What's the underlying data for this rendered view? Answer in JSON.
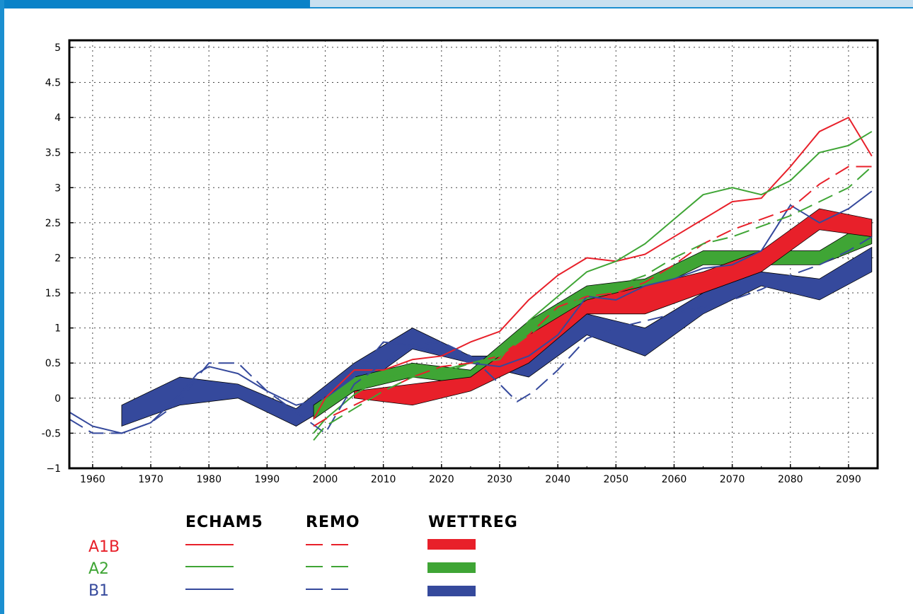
{
  "colors": {
    "A1B": "#e8202a",
    "A2": "#3fa535",
    "B1": "#35499c",
    "frame": "#1b8fd0"
  },
  "chart_data": {
    "type": "line",
    "xlim": [
      1956,
      2095
    ],
    "ylim": [
      -1,
      5.1
    ],
    "x_ticks": [
      1960,
      1970,
      1980,
      1990,
      2000,
      2010,
      2020,
      2030,
      2040,
      2050,
      2060,
      2070,
      2080,
      2090
    ],
    "y_ticks": [
      {
        "v": 5,
        "label": "5"
      },
      {
        "v": 4.5,
        "label": "4.5"
      },
      {
        "v": 4,
        "label": "4"
      },
      {
        "v": 3.5,
        "label": "3.5"
      },
      {
        "v": 3,
        "label": "3"
      },
      {
        "v": 2.5,
        "label": "2.5"
      },
      {
        "v": 2,
        "label": "2"
      },
      {
        "v": 1.5,
        "label": "1.5"
      },
      {
        "v": 1,
        "label": "1"
      },
      {
        "v": 0.5,
        "label": "0.5"
      },
      {
        "v": 0,
        "label": "0"
      },
      {
        "v": -0.5,
        "label": "-0.5"
      },
      {
        "v": -1,
        "label": "−1"
      }
    ],
    "grid": true,
    "legend": {
      "columns": [
        "ECHAM5",
        "REMO",
        "WETTREG"
      ],
      "rows": [
        {
          "label": "A1B",
          "color": "#e8202a"
        },
        {
          "label": "A2",
          "color": "#3fa535"
        },
        {
          "label": "B1",
          "color": "#35499c"
        }
      ]
    },
    "bands": [
      {
        "scenario": "B1",
        "color": "#35499c",
        "x": [
          1965,
          1975,
          1985,
          1995,
          2005,
          2015,
          2025,
          2035,
          2045,
          2055,
          2065,
          2075,
          2085,
          2094
        ],
        "low": [
          -0.4,
          -0.1,
          0.0,
          -0.4,
          0.1,
          0.7,
          0.5,
          0.3,
          0.9,
          0.6,
          1.2,
          1.6,
          1.4,
          1.8
        ],
        "high": [
          -0.1,
          0.3,
          0.2,
          -0.15,
          0.5,
          1.0,
          0.6,
          0.6,
          1.2,
          1.0,
          1.5,
          1.8,
          1.7,
          2.15
        ]
      },
      {
        "scenario": "A2",
        "color": "#3fa535",
        "x": [
          1998,
          2005,
          2015,
          2025,
          2035,
          2045,
          2055,
          2065,
          2075,
          2085,
          2094
        ],
        "low": [
          -0.3,
          0.1,
          0.3,
          0.2,
          0.8,
          1.3,
          1.5,
          1.9,
          1.9,
          1.9,
          2.2
        ],
        "high": [
          -0.1,
          0.3,
          0.5,
          0.4,
          1.1,
          1.6,
          1.7,
          2.1,
          2.1,
          2.1,
          2.55
        ]
      },
      {
        "scenario": "A1B",
        "color": "#e8202a",
        "x": [
          2005,
          2015,
          2025,
          2035,
          2045,
          2055,
          2065,
          2075,
          2085,
          2094
        ],
        "low": [
          0.0,
          -0.1,
          0.1,
          0.5,
          1.2,
          1.2,
          1.5,
          1.8,
          2.4,
          2.3
        ],
        "high": [
          0.1,
          0.2,
          0.3,
          0.9,
          1.4,
          1.6,
          1.8,
          2.1,
          2.7,
          2.55
        ]
      }
    ],
    "series": [
      {
        "scenario": "B1",
        "model": "ECHAM5",
        "color": "#35499c",
        "dashed": false,
        "x": [
          1956,
          1960,
          1965,
          1970,
          1975,
          1978,
          1980,
          1985,
          1990,
          1995,
          2000,
          2005,
          2010,
          2015,
          2020,
          2025,
          2030,
          2035,
          2040,
          2045,
          2050,
          2055,
          2060,
          2065,
          2070,
          2075,
          2080,
          2085,
          2090,
          2094
        ],
        "y": [
          -0.2,
          -0.4,
          -0.5,
          -0.35,
          0.05,
          0.35,
          0.45,
          0.35,
          0.1,
          -0.1,
          0.0,
          0.3,
          0.8,
          0.75,
          0.65,
          0.5,
          0.45,
          0.6,
          0.9,
          1.45,
          1.4,
          1.6,
          1.7,
          1.85,
          1.9,
          2.1,
          2.75,
          2.5,
          2.7,
          2.95
        ]
      },
      {
        "scenario": "A1B",
        "model": "ECHAM5",
        "color": "#e8202a",
        "dashed": false,
        "x": [
          1998,
          2000,
          2005,
          2010,
          2015,
          2020,
          2025,
          2030,
          2035,
          2040,
          2045,
          2050,
          2055,
          2060,
          2065,
          2070,
          2075,
          2080,
          2085,
          2090,
          2094
        ],
        "y": [
          -0.3,
          0.0,
          0.4,
          0.4,
          0.55,
          0.6,
          0.8,
          0.95,
          1.4,
          1.75,
          2.0,
          1.95,
          2.05,
          2.3,
          2.55,
          2.8,
          2.85,
          3.3,
          3.8,
          4.0,
          3.45
        ]
      },
      {
        "scenario": "A2",
        "model": "ECHAM5",
        "color": "#3fa535",
        "dashed": false,
        "x": [
          1998,
          2000,
          2005,
          2010,
          2015,
          2020,
          2025,
          2030,
          2035,
          2040,
          2045,
          2050,
          2055,
          2060,
          2065,
          2070,
          2075,
          2080,
          2085,
          2090,
          2094
        ],
        "y": [
          -0.5,
          -0.3,
          0.05,
          0.3,
          0.35,
          0.4,
          0.5,
          0.55,
          1.1,
          1.45,
          1.8,
          1.95,
          2.2,
          2.55,
          2.9,
          3.0,
          2.9,
          3.1,
          3.5,
          3.6,
          3.8
        ]
      },
      {
        "scenario": "B1",
        "model": "REMO",
        "color": "#35499c",
        "dashed": true,
        "x": [
          1956,
          1960,
          1965,
          1970,
          1975,
          1978,
          1980,
          1985,
          1990,
          1995,
          2000,
          2005,
          2010,
          2015,
          2020,
          2025,
          2030,
          2033,
          2036,
          2040,
          2045,
          2050,
          2055,
          2060,
          2065,
          2070,
          2075,
          2080,
          2085,
          2090,
          2094
        ],
        "y": [
          -0.3,
          -0.5,
          -0.5,
          -0.35,
          -0.05,
          0.3,
          0.5,
          0.5,
          0.1,
          -0.2,
          -0.5,
          0.2,
          0.5,
          0.75,
          0.8,
          0.6,
          0.2,
          -0.05,
          0.1,
          0.4,
          0.85,
          1.0,
          1.1,
          1.2,
          1.3,
          1.4,
          1.55,
          1.75,
          1.9,
          2.1,
          2.3
        ]
      },
      {
        "scenario": "A1B",
        "model": "REMO",
        "color": "#e8202a",
        "dashed": true,
        "x": [
          1998,
          2000,
          2005,
          2010,
          2015,
          2020,
          2025,
          2030,
          2035,
          2040,
          2045,
          2050,
          2055,
          2060,
          2065,
          2070,
          2075,
          2080,
          2085,
          2090,
          2094
        ],
        "y": [
          -0.4,
          -0.3,
          -0.1,
          0.1,
          0.3,
          0.45,
          0.5,
          0.6,
          0.9,
          1.3,
          1.45,
          1.5,
          1.65,
          1.9,
          2.2,
          2.4,
          2.55,
          2.7,
          3.05,
          3.3,
          3.3
        ]
      },
      {
        "scenario": "A2",
        "model": "REMO",
        "color": "#3fa535",
        "dashed": true,
        "x": [
          1998,
          2000,
          2005,
          2010,
          2015,
          2020,
          2025,
          2030,
          2035,
          2040,
          2045,
          2050,
          2055,
          2060,
          2065,
          2070,
          2075,
          2080,
          2085,
          2090,
          2094
        ],
        "y": [
          -0.6,
          -0.4,
          -0.15,
          0.1,
          0.3,
          0.35,
          0.5,
          0.6,
          0.9,
          1.2,
          1.5,
          1.6,
          1.75,
          2.0,
          2.2,
          2.3,
          2.45,
          2.6,
          2.8,
          3.0,
          3.3
        ]
      }
    ]
  }
}
